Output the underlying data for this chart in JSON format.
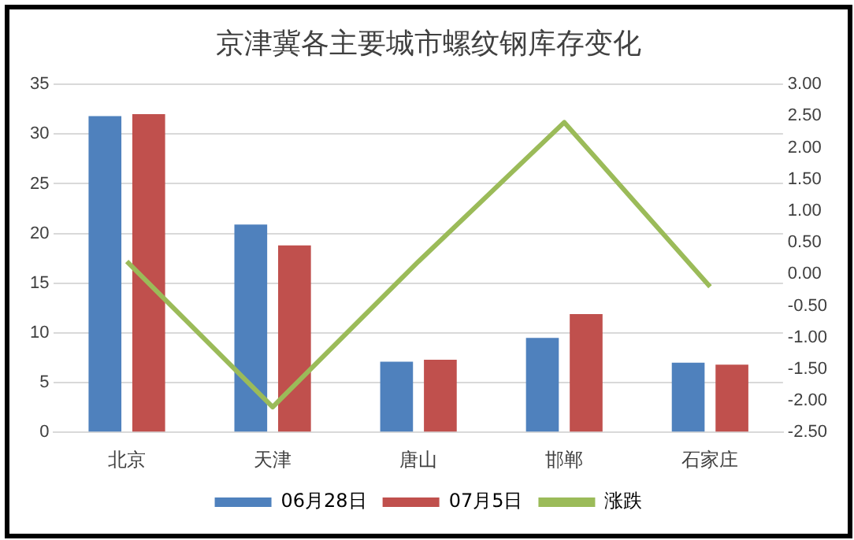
{
  "chart_data": {
    "type": "bar",
    "title": "京津冀各主要城市螺纹钢库存变化",
    "categories": [
      "北京",
      "天津",
      "唐山",
      "邯郸",
      "石家庄"
    ],
    "series": [
      {
        "name": "06月28日",
        "color": "#4f81bd",
        "values": [
          31.8,
          20.9,
          7.1,
          9.5,
          7.0
        ]
      },
      {
        "name": "07月5日",
        "color": "#c0504d",
        "values": [
          32.0,
          18.8,
          7.3,
          11.9,
          6.8
        ]
      },
      {
        "name": "涨跌",
        "type": "line",
        "axis": "y2",
        "color": "#9bbb59",
        "values": [
          0.2,
          -2.1,
          0.2,
          2.4,
          -0.2
        ],
        "marker": "none"
      }
    ],
    "ylim": [
      0,
      35
    ],
    "yticks": [
      0,
      5,
      10,
      15,
      20,
      25,
      30,
      35
    ],
    "y2lim": [
      -2.5,
      3
    ],
    "y2ticks": [
      {
        "value": -2.5,
        "label": "-2.50"
      },
      {
        "value": -2,
        "label": "-2.00"
      },
      {
        "value": -1.5,
        "label": "-1.50"
      },
      {
        "value": -1,
        "label": "-1.00"
      },
      {
        "value": -0.5,
        "label": "-0.50"
      },
      {
        "value": 0,
        "label": "0.00"
      },
      {
        "value": 0.5,
        "label": "0.50"
      },
      {
        "value": 1,
        "label": "1.00"
      },
      {
        "value": 1.5,
        "label": "1.50"
      },
      {
        "value": 2,
        "label": "2.00"
      },
      {
        "value": 2.5,
        "label": "2.50"
      },
      {
        "value": 3,
        "label": "3.00"
      }
    ],
    "grid": "y",
    "legend": "bottom"
  }
}
